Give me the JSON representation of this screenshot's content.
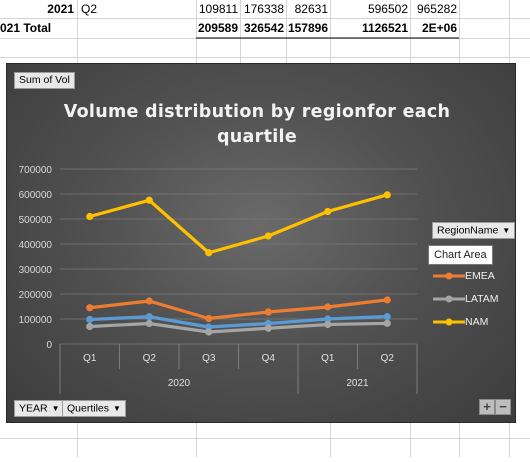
{
  "sheet": {
    "row1": {
      "year": "2021",
      "quarter": "Q2",
      "values": [
        "109811",
        "176338",
        "82631",
        "596502",
        "965282"
      ]
    },
    "row2": {
      "label": "021 Total",
      "values": [
        "209589",
        "326542",
        "157896",
        "1126521",
        "2E+06"
      ]
    }
  },
  "chart": {
    "value_field_button": "Sum of Vol",
    "title_line1": "Volume distribution by regionfor each",
    "title_line2": "quartile",
    "legend_field_button": "RegionName",
    "tooltip": "Chart Area",
    "axis_buttons": {
      "year": "YEAR",
      "quarters": "Quertiles"
    },
    "plus_label": "+",
    "minus_label": "−",
    "dropdown_glyph": "▼",
    "colors": {
      "EMEA": "#ed7d31",
      "LATAM": "#a5a5a5",
      "NAM": "#ffc000",
      "Series1": "#5b9bd5"
    }
  },
  "chart_data": {
    "type": "line",
    "categories": [
      "Q1",
      "Q2",
      "Q3",
      "Q4",
      "Q1",
      "Q2"
    ],
    "groups": [
      {
        "label": "2020",
        "span": 4
      },
      {
        "label": "2021",
        "span": 2
      }
    ],
    "ylim": [
      0,
      700000
    ],
    "yticks": [
      "0",
      "100000",
      "200000",
      "300000",
      "400000",
      "500000",
      "600000",
      "700000"
    ],
    "grid": true,
    "legend_position": "right",
    "series": [
      {
        "name": "NAM",
        "color": "#ffc000",
        "values": [
          510000,
          575000,
          365000,
          432000,
          530000,
          596502
        ]
      },
      {
        "name": "EMEA",
        "color": "#ed7d31",
        "values": [
          145000,
          172000,
          102000,
          128000,
          148000,
          176338
        ]
      },
      {
        "color": "#5b9bd5",
        "values": [
          98000,
          109000,
          68000,
          82000,
          100000,
          109811
        ]
      },
      {
        "name": "LATAM",
        "color": "#a5a5a5",
        "values": [
          70000,
          82000,
          48000,
          63000,
          78000,
          82631
        ]
      }
    ]
  }
}
